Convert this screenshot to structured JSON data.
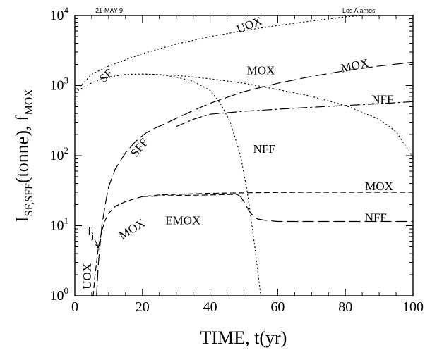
{
  "chart_data": {
    "type": "line",
    "header_left": "21-MAY-9",
    "header_right": "Los Alamos",
    "xlabel": "TIME, t(yr)",
    "ylabel_main": "I",
    "ylabel_sub": "SF,SFF",
    "ylabel_mid": "(tonne), f",
    "ylabel_sub2": "MOX",
    "xlim": [
      0,
      100
    ],
    "ylim": [
      1,
      10000
    ],
    "yscale": "log",
    "x_ticks": [
      0,
      20,
      40,
      60,
      80,
      100
    ],
    "x_tick_labels": [
      "0",
      "20",
      "40",
      "60",
      "80",
      "100"
    ],
    "y_ticks": [
      1,
      10,
      100,
      1000,
      10000
    ],
    "y_tick_labels": [
      {
        "base": "10",
        "exp": "0"
      },
      {
        "base": "10",
        "exp": "1"
      },
      {
        "base": "10",
        "exp": "2"
      },
      {
        "base": "10",
        "exp": "3"
      },
      {
        "base": "10",
        "exp": "4"
      }
    ],
    "series": [
      {
        "name": "UOX",
        "style": "dotted",
        "x": [
          0,
          5,
          10,
          20,
          30,
          40,
          50,
          60,
          70,
          80,
          85
        ],
        "y": [
          800,
          1450,
          1900,
          2850,
          3900,
          5000,
          6100,
          7200,
          8350,
          9550,
          10000
        ]
      },
      {
        "name": "SF",
        "style": "dotted",
        "x": [
          0,
          5,
          10,
          15,
          20,
          25,
          30,
          35,
          40,
          43,
          46,
          49,
          51,
          53,
          55
        ],
        "y": [
          800,
          1100,
          1320,
          1440,
          1460,
          1430,
          1320,
          1150,
          850,
          560,
          300,
          100,
          30,
          6,
          0.7
        ]
      },
      {
        "name": "MOX",
        "style": "dotted",
        "x": [
          20,
          30,
          40,
          50,
          60,
          70,
          80,
          90,
          95,
          100
        ],
        "y": [
          1460,
          1400,
          1250,
          1080,
          880,
          700,
          520,
          330,
          220,
          95
        ]
      },
      {
        "name": "MOX",
        "style": "long-dash",
        "x": [
          6.4,
          7,
          8,
          9,
          10,
          12,
          15,
          18,
          21,
          24,
          27,
          30,
          35,
          40,
          50,
          60,
          70,
          80,
          90,
          100
        ],
        "y": [
          0.7,
          3,
          10,
          20,
          36,
          65,
          110,
          160,
          210,
          250,
          290,
          340,
          440,
          560,
          820,
          1080,
          1350,
          1630,
          1900,
          2150
        ]
      },
      {
        "name": "NFF",
        "style": "dash-dot",
        "x": [
          30,
          35,
          40,
          50,
          60,
          70,
          80,
          90,
          100
        ],
        "y": [
          260,
          330,
          390,
          430,
          460,
          490,
          520,
          550,
          590
        ]
      },
      {
        "name": "MOX",
        "style": "dashed",
        "x": [
          5.4,
          6,
          7,
          8,
          9,
          10,
          12,
          15,
          18,
          20,
          25,
          30,
          40,
          50,
          60,
          70,
          80,
          90,
          100
        ],
        "y": [
          0.7,
          2,
          5,
          8.5,
          12,
          15,
          19,
          22,
          24.5,
          26,
          27.5,
          28,
          29,
          29.5,
          29.8,
          30,
          30,
          30,
          30
        ]
      },
      {
        "name": "EMOX",
        "style": "dashed",
        "x": [
          20,
          30,
          40,
          48
        ],
        "y": [
          26,
          27,
          27.5,
          28
        ]
      },
      {
        "name": "NFF",
        "style": "long-dash",
        "x": [
          48,
          49,
          50,
          51,
          52,
          54,
          56,
          60,
          70,
          80,
          90,
          100
        ],
        "y": [
          28,
          26,
          22,
          18,
          15,
          12.5,
          12,
          11.5,
          11.5,
          11.5,
          11.5,
          11.5
        ]
      }
    ],
    "annotations": [
      {
        "text": "UOX",
        "x": 52,
        "y": 6500,
        "rotate": -22
      },
      {
        "text": "SF",
        "x": 10,
        "y": 1250,
        "rotate": -40
      },
      {
        "text": "MOX",
        "x": 55,
        "y": 1450,
        "rotate": 0
      },
      {
        "text": "MOX",
        "x": 83,
        "y": 1700,
        "rotate": -12
      },
      {
        "text": "NFF",
        "x": 91,
        "y": 560,
        "rotate": 0
      },
      {
        "text": "SFF",
        "x": 20,
        "y": 120,
        "rotate": -50
      },
      {
        "text": "NFF",
        "x": 56,
        "y": 110,
        "rotate": 0
      },
      {
        "text": "MOX",
        "x": 90,
        "y": 32,
        "rotate": 0
      },
      {
        "text": "EMOX",
        "x": 32,
        "y": 10.5,
        "rotate": 0
      },
      {
        "text": "MOX",
        "x": 17.5,
        "y": 8,
        "rotate": -32
      },
      {
        "text": "NFF",
        "x": 89,
        "y": 11.5,
        "rotate": 0
      },
      {
        "text": "UOX",
        "x": 4.8,
        "y": 1.9,
        "rotate": -90
      }
    ],
    "fj_label": {
      "text": "f",
      "sub": "j"
    }
  }
}
